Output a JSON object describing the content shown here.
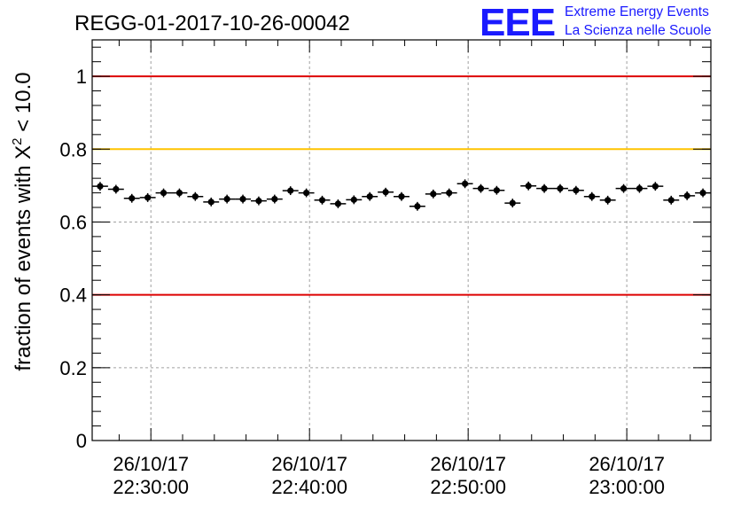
{
  "chart_data": {
    "type": "scatter",
    "title": "REGG-01-2017-10-26-00042",
    "xlabel": "",
    "ylabel_main": "fraction of events with X",
    "ylabel_sup": "2",
    "ylabel_tail": " < 10.0",
    "x_unit": "minutes after 22:30:00",
    "xlim": [
      -3.7,
      35.3
    ],
    "ylim": [
      0,
      1.1
    ],
    "y_ticks": [
      0,
      0.2,
      0.4,
      0.6,
      0.8,
      1
    ],
    "y_tick_labels": [
      "0",
      "0.2",
      "0.4",
      "0.6",
      "0.8",
      "1"
    ],
    "x_ticks": [
      0,
      10,
      20,
      30
    ],
    "x_tick_labels": [
      {
        "date": "26/10/17",
        "time": "22:30:00"
      },
      {
        "date": "26/10/17",
        "time": "22:40:00"
      },
      {
        "date": "26/10/17",
        "time": "22:50:00"
      },
      {
        "date": "26/10/17",
        "time": "23:00:00"
      }
    ],
    "grid": true,
    "reference_lines": [
      {
        "value": 1.0,
        "color": "#dd0000"
      },
      {
        "value": 0.8,
        "color": "#ffc400"
      },
      {
        "value": 0.4,
        "color": "#dd0000"
      }
    ],
    "bin_width_min": 1,
    "x": [
      -3.2,
      -2.2,
      -1.2,
      -0.2,
      0.8,
      1.8,
      2.8,
      3.8,
      4.8,
      5.8,
      6.8,
      7.8,
      8.8,
      9.8,
      10.8,
      11.8,
      12.8,
      13.8,
      14.8,
      15.8,
      16.8,
      17.8,
      18.8,
      19.8,
      20.8,
      21.8,
      22.8,
      23.8,
      24.8,
      25.8,
      26.8,
      27.8,
      28.8,
      29.8,
      30.8,
      31.8,
      32.8,
      33.8,
      34.8
    ],
    "values": [
      0.698,
      0.69,
      0.665,
      0.667,
      0.68,
      0.68,
      0.67,
      0.655,
      0.663,
      0.663,
      0.658,
      0.663,
      0.686,
      0.68,
      0.66,
      0.65,
      0.661,
      0.67,
      0.682,
      0.67,
      0.643,
      0.677,
      0.68,
      0.705,
      0.692,
      0.687,
      0.652,
      0.699,
      0.692,
      0.692,
      0.687,
      0.67,
      0.66,
      0.692,
      0.692,
      0.698,
      0.66,
      0.672,
      0.68
    ],
    "error": 0.012
  },
  "logo": {
    "mark": "EEE",
    "line1": "Extreme Energy Events",
    "line2": "La Scienza nelle Scuole",
    "color": "#1a1aff"
  }
}
